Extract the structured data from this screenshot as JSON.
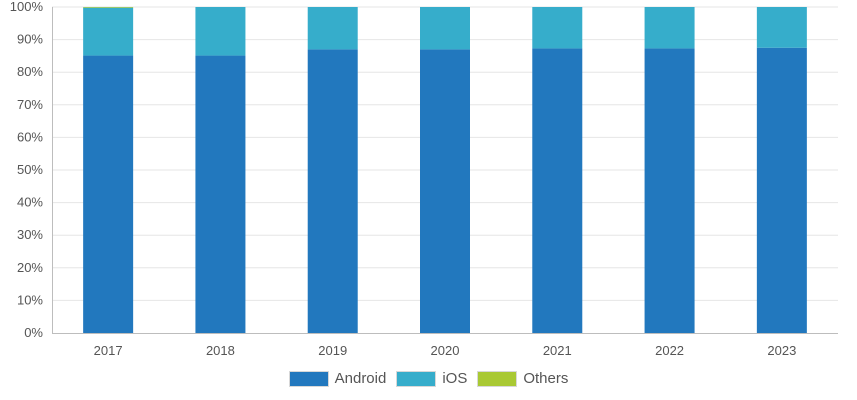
{
  "chart_data": {
    "type": "bar",
    "stacked": true,
    "categories": [
      "2017",
      "2018",
      "2019",
      "2020",
      "2021",
      "2022",
      "2023"
    ],
    "series": [
      {
        "name": "Android",
        "color": "#2278be",
        "values": [
          85.1,
          85.1,
          87.0,
          87.0,
          87.3,
          87.3,
          87.5
        ]
      },
      {
        "name": "iOS",
        "color": "#36adcb",
        "values": [
          14.7,
          14.9,
          13.0,
          13.0,
          12.7,
          12.7,
          12.5
        ]
      },
      {
        "name": "Others",
        "color": "#a9c934",
        "values": [
          0.2,
          0.0,
          0.0,
          0.0,
          0.0,
          0.0,
          0.0
        ]
      }
    ],
    "ylim": [
      0,
      100
    ],
    "y_ticks": [
      "0%",
      "10%",
      "20%",
      "30%",
      "40%",
      "50%",
      "60%",
      "70%",
      "80%",
      "90%",
      "100%"
    ],
    "grid": true,
    "legend_position": "bottom"
  }
}
